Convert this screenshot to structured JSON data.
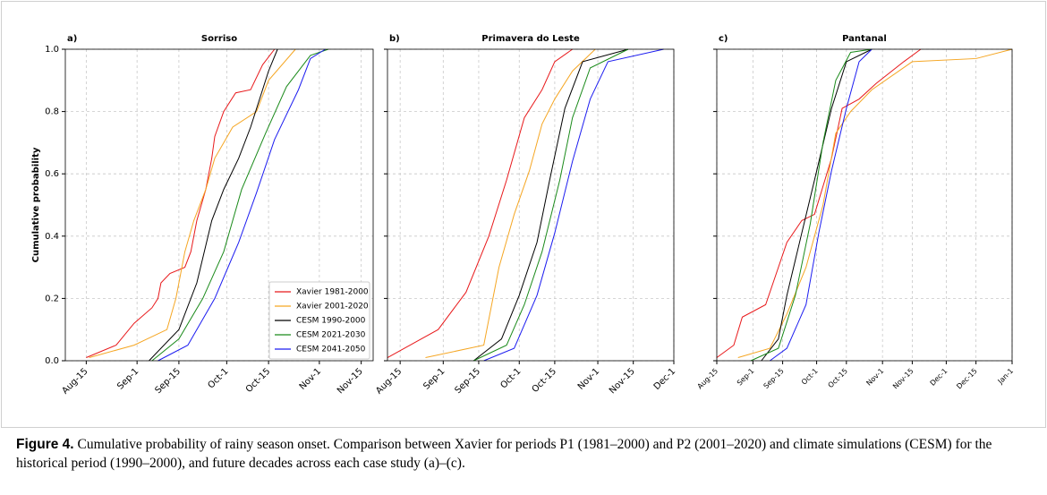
{
  "chart_data": [
    {
      "type": "line",
      "panel_label": "a)",
      "title": "Sorriso",
      "y_label": "Cumulative probability",
      "legend": "lower right",
      "xlim": [
        220,
        323
      ],
      "ylim": [
        0,
        1
      ],
      "xticks": [
        {
          "value": 227,
          "label": "Aug-15"
        },
        {
          "value": 244,
          "label": "Sep-1"
        },
        {
          "value": 258,
          "label": "Sep-15"
        },
        {
          "value": 274,
          "label": "Oct-1"
        },
        {
          "value": 288,
          "label": "Oct-15"
        },
        {
          "value": 305,
          "label": "Nov-1"
        },
        {
          "value": 319,
          "label": "Nov-15"
        }
      ],
      "yticks": [
        {
          "value": 0,
          "label": "0.0"
        },
        0.2,
        0.4,
        0.6,
        0.8,
        {
          "value": 1,
          "label": "1.0"
        }
      ],
      "grid": true,
      "series": [
        {
          "name": "Xavier 1981-2000",
          "color": "#e8191b",
          "x": [
            227,
            237,
            243,
            249,
            251,
            252,
            255,
            260,
            262,
            264,
            267,
            269,
            270,
            273,
            277,
            282,
            286,
            290
          ],
          "values": [
            0.01,
            0.05,
            0.12,
            0.17,
            0.2,
            0.25,
            0.28,
            0.3,
            0.35,
            0.45,
            0.55,
            0.65,
            0.72,
            0.8,
            0.86,
            0.87,
            0.95,
            1.0
          ]
        },
        {
          "name": "Xavier 2001-2020",
          "color": "#f5a623",
          "x": [
            228,
            243,
            254,
            257,
            260,
            263,
            267,
            270,
            276,
            284,
            288,
            297
          ],
          "values": [
            0.01,
            0.05,
            0.1,
            0.2,
            0.35,
            0.45,
            0.55,
            0.65,
            0.75,
            0.8,
            0.9,
            1.0
          ]
        },
        {
          "name": "CESM 1990-2000",
          "color": "#000000",
          "x": [
            248,
            258,
            264,
            269,
            273,
            278,
            282,
            288,
            291
          ],
          "values": [
            0,
            0.1,
            0.25,
            0.45,
            0.55,
            0.65,
            0.75,
            0.93,
            1.0
          ]
        },
        {
          "name": "CESM 2021-2030",
          "color": "#1a8a1a",
          "x": [
            249,
            258,
            266,
            273,
            279,
            287,
            294,
            302,
            308
          ],
          "values": [
            0,
            0.07,
            0.2,
            0.35,
            0.55,
            0.73,
            0.88,
            0.98,
            1.0
          ]
        },
        {
          "name": "CESM 2041-2050",
          "color": "#1c1cf0",
          "x": [
            251,
            261,
            270,
            278,
            284,
            290,
            298,
            302,
            307
          ],
          "values": [
            0,
            0.05,
            0.2,
            0.38,
            0.54,
            0.71,
            0.87,
            0.97,
            1.0
          ]
        }
      ]
    },
    {
      "type": "line",
      "panel_label": "b)",
      "title": "Primavera do Leste",
      "xlim": [
        222,
        335
      ],
      "ylim": [
        0,
        1
      ],
      "xticks": [
        {
          "value": 227,
          "label": "Aug-15"
        },
        {
          "value": 244,
          "label": "Sep-1"
        },
        {
          "value": 258,
          "label": "Sep-15"
        },
        {
          "value": 274,
          "label": "Oct-1"
        },
        {
          "value": 288,
          "label": "Oct-15"
        },
        {
          "value": 305,
          "label": "Nov-1"
        },
        {
          "value": 319,
          "label": "Nov-15"
        },
        {
          "value": 335,
          "label": "Dec-1"
        }
      ],
      "yticks": [
        0,
        0.2,
        0.4,
        0.6,
        0.8,
        1
      ],
      "grid": true,
      "series": [
        {
          "color": "#e8191b",
          "x": [
            222,
            242,
            253,
            262,
            269,
            276,
            283,
            288,
            295
          ],
          "values": [
            0.01,
            0.1,
            0.22,
            0.4,
            0.58,
            0.78,
            0.87,
            0.96,
            1.0
          ]
        },
        {
          "color": "#f5a623",
          "x": [
            237,
            260,
            266,
            272,
            278,
            283,
            288,
            295,
            304
          ],
          "values": [
            0.01,
            0.05,
            0.3,
            0.47,
            0.61,
            0.76,
            0.84,
            0.93,
            1.0
          ]
        },
        {
          "color": "#000000",
          "x": [
            256,
            267,
            274,
            281,
            286,
            292,
            299,
            317
          ],
          "values": [
            0,
            0.07,
            0.21,
            0.38,
            0.58,
            0.81,
            0.96,
            1.0
          ]
        },
        {
          "color": "#1a8a1a",
          "x": [
            256,
            269,
            276,
            283,
            290,
            295,
            302,
            317
          ],
          "values": [
            0,
            0.05,
            0.18,
            0.35,
            0.58,
            0.78,
            0.94,
            1.0
          ]
        },
        {
          "color": "#1c1cf0",
          "x": [
            260,
            272,
            281,
            288,
            295,
            302,
            309,
            331
          ],
          "values": [
            0,
            0.04,
            0.21,
            0.41,
            0.64,
            0.84,
            0.96,
            1.0
          ]
        }
      ]
    },
    {
      "type": "line",
      "panel_label": "c)",
      "title": "Pantanal",
      "xlim": [
        227,
        366
      ],
      "ylim": [
        0,
        1
      ],
      "xticks": [
        {
          "value": 227,
          "label": "Aug-15"
        },
        {
          "value": 244,
          "label": "Sep-1"
        },
        {
          "value": 258,
          "label": "Sep-15"
        },
        {
          "value": 274,
          "label": "Oct-1"
        },
        {
          "value": 288,
          "label": "Oct-15"
        },
        {
          "value": 305,
          "label": "Nov-1"
        },
        {
          "value": 319,
          "label": "Nov-15"
        },
        {
          "value": 335,
          "label": "Dec-1"
        },
        {
          "value": 349,
          "label": "Dec-15"
        },
        {
          "value": 366,
          "label": "Jan-1"
        }
      ],
      "yticks": [
        0,
        0.2,
        0.4,
        0.6,
        0.8,
        1
      ],
      "grid": true,
      "series": [
        {
          "color": "#e8191b",
          "x": [
            227,
            235,
            239,
            250,
            256,
            260,
            267,
            273,
            281,
            286,
            294,
            302,
            315,
            323
          ],
          "values": [
            0.01,
            0.05,
            0.14,
            0.18,
            0.3,
            0.38,
            0.45,
            0.47,
            0.65,
            0.81,
            0.84,
            0.89,
            0.96,
            1.0
          ]
        },
        {
          "color": "#f5a623",
          "x": [
            237,
            252,
            260,
            269,
            277,
            283,
            290,
            300,
            319,
            349,
            366
          ],
          "values": [
            0.01,
            0.04,
            0.15,
            0.3,
            0.5,
            0.73,
            0.8,
            0.87,
            0.96,
            0.97,
            1.0
          ]
        },
        {
          "color": "#000000",
          "x": [
            248,
            256,
            260,
            267,
            273,
            281,
            288,
            300
          ],
          "values": [
            0,
            0.07,
            0.21,
            0.41,
            0.58,
            0.81,
            0.96,
            1.0
          ]
        },
        {
          "color": "#1a8a1a",
          "x": [
            243,
            256,
            264,
            271,
            277,
            283,
            290,
            300
          ],
          "values": [
            0,
            0.04,
            0.21,
            0.44,
            0.7,
            0.9,
            0.99,
            1.0
          ]
        },
        {
          "color": "#1c1cf0",
          "x": [
            252,
            260,
            269,
            275,
            281,
            288,
            294,
            300
          ],
          "values": [
            0,
            0.04,
            0.18,
            0.41,
            0.61,
            0.81,
            0.96,
            1.0
          ]
        }
      ]
    }
  ],
  "caption": {
    "label": "Figure 4.",
    "text": "Cumulative probability of rainy season onset. Comparison between Xavier for periods P1 (1981–2000) and P2 (2001–2020) and climate simulations (CESM) for the historical period (1990–2000), and future decades across each case study (a)–(c)."
  }
}
